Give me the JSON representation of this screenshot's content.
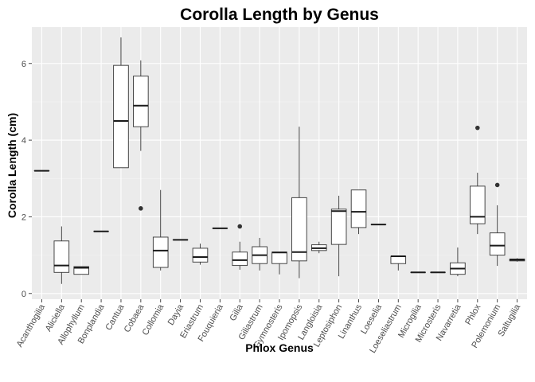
{
  "chart_data": {
    "type": "boxplot",
    "title": "Corolla Length by Genus",
    "xlabel": "Phlox Genus",
    "ylabel": "Corolla Length (cm)",
    "ylim": [
      -0.15,
      6.95
    ],
    "yticks": [
      0,
      2,
      4,
      6
    ],
    "grid": true,
    "colors": {
      "panel": "#ebebeb",
      "box_fill": "#ffffff",
      "box_stroke": "#333333",
      "outlier": "#333333"
    },
    "categories": [
      "Acanthogilia",
      "Aliciella",
      "Allophyllum",
      "Bonplandia",
      "Cantua",
      "Cobaea",
      "Collomia",
      "Dayia",
      "Eriastrum",
      "Fouquieria",
      "Gilia",
      "Giliastrum",
      "Gymnosteris",
      "Ipomopsis",
      "Langloisia",
      "Leptosiphon",
      "Linanthus",
      "Loeselia",
      "Loeseliastrum",
      "Microgilia",
      "Microsteris",
      "Navarretia",
      "Phlox",
      "Polemonium",
      "Saltugilia"
    ],
    "boxes": [
      {
        "min": 3.2,
        "q1": 3.2,
        "median": 3.2,
        "q3": 3.2,
        "max": 3.2,
        "outliers": []
      },
      {
        "min": 0.25,
        "q1": 0.55,
        "median": 0.73,
        "q3": 1.37,
        "max": 1.75,
        "outliers": []
      },
      {
        "min": 0.5,
        "q1": 0.5,
        "median": 0.67,
        "q3": 0.7,
        "max": 0.7,
        "outliers": []
      },
      {
        "min": 1.62,
        "q1": 1.62,
        "median": 1.62,
        "q3": 1.62,
        "max": 1.62,
        "outliers": []
      },
      {
        "min": 3.28,
        "q1": 3.28,
        "median": 4.5,
        "q3": 5.95,
        "max": 6.68,
        "outliers": []
      },
      {
        "min": 3.72,
        "q1": 4.35,
        "median": 4.9,
        "q3": 5.67,
        "max": 6.08,
        "outliers": [
          2.22
        ]
      },
      {
        "min": 0.6,
        "q1": 0.68,
        "median": 1.12,
        "q3": 1.47,
        "max": 2.7,
        "outliers": []
      },
      {
        "min": 1.4,
        "q1": 1.4,
        "median": 1.4,
        "q3": 1.4,
        "max": 1.4,
        "outliers": []
      },
      {
        "min": 0.75,
        "q1": 0.82,
        "median": 0.95,
        "q3": 1.18,
        "max": 1.3,
        "outliers": []
      },
      {
        "min": 1.7,
        "q1": 1.7,
        "median": 1.7,
        "q3": 1.7,
        "max": 1.7,
        "outliers": []
      },
      {
        "min": 0.62,
        "q1": 0.73,
        "median": 0.87,
        "q3": 1.08,
        "max": 1.35,
        "outliers": [
          1.75
        ]
      },
      {
        "min": 0.6,
        "q1": 0.78,
        "median": 1.0,
        "q3": 1.22,
        "max": 1.45,
        "outliers": []
      },
      {
        "min": 0.5,
        "q1": 0.78,
        "median": 1.07,
        "q3": 1.08,
        "max": 1.08,
        "outliers": []
      },
      {
        "min": 0.4,
        "q1": 0.85,
        "median": 1.08,
        "q3": 2.5,
        "max": 4.35,
        "outliers": []
      },
      {
        "min": 1.05,
        "q1": 1.12,
        "median": 1.18,
        "q3": 1.27,
        "max": 1.35,
        "outliers": []
      },
      {
        "min": 0.45,
        "q1": 1.28,
        "median": 2.15,
        "q3": 2.2,
        "max": 2.55,
        "outliers": []
      },
      {
        "min": 1.55,
        "q1": 1.72,
        "median": 2.13,
        "q3": 2.7,
        "max": 2.7,
        "outliers": []
      },
      {
        "min": 1.8,
        "q1": 1.8,
        "median": 1.8,
        "q3": 1.8,
        "max": 1.8,
        "outliers": []
      },
      {
        "min": 0.6,
        "q1": 0.78,
        "median": 0.97,
        "q3": 0.97,
        "max": 0.97,
        "outliers": []
      },
      {
        "min": 0.55,
        "q1": 0.55,
        "median": 0.55,
        "q3": 0.55,
        "max": 0.55,
        "outliers": []
      },
      {
        "min": 0.55,
        "q1": 0.55,
        "median": 0.55,
        "q3": 0.55,
        "max": 0.55,
        "outliers": []
      },
      {
        "min": 0.45,
        "q1": 0.5,
        "median": 0.65,
        "q3": 0.8,
        "max": 1.2,
        "outliers": []
      },
      {
        "min": 1.55,
        "q1": 1.82,
        "median": 2.0,
        "q3": 2.8,
        "max": 3.15,
        "outliers": [
          4.32
        ]
      },
      {
        "min": 0.72,
        "q1": 1.0,
        "median": 1.25,
        "q3": 1.58,
        "max": 2.3,
        "outliers": [
          2.83
        ]
      },
      {
        "min": 0.83,
        "q1": 0.85,
        "median": 0.88,
        "q3": 0.9,
        "max": 0.92,
        "outliers": []
      }
    ]
  }
}
